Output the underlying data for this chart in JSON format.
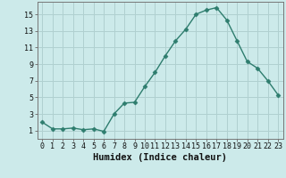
{
  "x": [
    0,
    1,
    2,
    3,
    4,
    5,
    6,
    7,
    8,
    9,
    10,
    11,
    12,
    13,
    14,
    15,
    16,
    17,
    18,
    19,
    20,
    21,
    22,
    23
  ],
  "y": [
    2.0,
    1.2,
    1.2,
    1.3,
    1.1,
    1.2,
    0.9,
    3.0,
    4.3,
    4.4,
    6.3,
    8.0,
    10.0,
    11.8,
    13.2,
    15.0,
    15.5,
    15.8,
    14.3,
    11.8,
    9.3,
    8.5,
    7.0,
    5.3
  ],
  "line_color": "#2e7d6e",
  "marker": "D",
  "marker_size": 2.5,
  "bg_color": "#cceaea",
  "grid_color": "#b0d0d0",
  "xlabel": "Humidex (Indice chaleur)",
  "ylabel_ticks": [
    1,
    3,
    5,
    7,
    9,
    11,
    13,
    15
  ],
  "xlim": [
    -0.5,
    23.5
  ],
  "ylim": [
    0.0,
    16.5
  ],
  "xtick_labels": [
    "0",
    "1",
    "2",
    "3",
    "4",
    "5",
    "6",
    "7",
    "8",
    "9",
    "10",
    "11",
    "12",
    "13",
    "14",
    "15",
    "16",
    "17",
    "18",
    "19",
    "20",
    "21",
    "22",
    "23"
  ],
  "tick_fontsize": 6.0,
  "label_fontsize": 7.5,
  "linewidth": 1.0
}
